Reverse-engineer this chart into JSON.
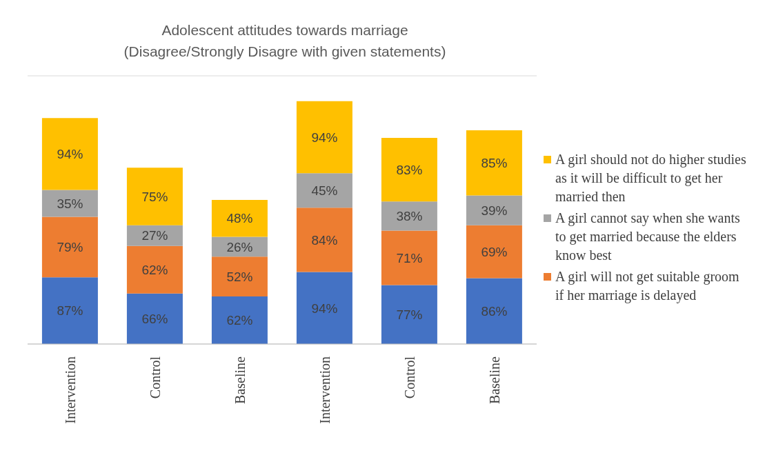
{
  "chart_data": {
    "type": "bar",
    "stacked": true,
    "title": "Adolescent attitudes towards marriage\n(Disagree/Strongly Disagre with given statements)",
    "categories": [
      "Intervention",
      "Control",
      "Baseline",
      "Intervention",
      "Control",
      "Baseline"
    ],
    "series": [
      {
        "color": "#4472c4",
        "values": [
          87,
          66,
          62,
          94,
          77,
          86
        ],
        "value_labels": [
          "87%",
          "66%",
          "62%",
          "94%",
          "77%",
          "86%"
        ]
      },
      {
        "name": "A girl will not get suitable groom if her marriage is delayed",
        "color": "#ed7d31",
        "values": [
          79,
          62,
          52,
          84,
          71,
          69
        ],
        "value_labels": [
          "79%",
          "62%",
          "52%",
          "84%",
          "71%",
          "69%"
        ]
      },
      {
        "name": "A girl cannot say when she wants to get married because the elders know best",
        "color": "#a5a5a5",
        "values": [
          35,
          27,
          26,
          45,
          38,
          39
        ],
        "value_labels": [
          "35%",
          "27%",
          "26%",
          "45%",
          "38%",
          "39%"
        ]
      },
      {
        "name": "A girl should not do higher studies as it will be difficult to get her married then",
        "color": "#ffc000",
        "values": [
          94,
          75,
          48,
          94,
          83,
          85
        ],
        "value_labels": [
          "94%",
          "75%",
          "48%",
          "94%",
          "83%",
          "85%"
        ]
      }
    ],
    "ylim": [
      0,
      350
    ],
    "tick_labels": "x",
    "grid": "y",
    "legend": "right"
  }
}
